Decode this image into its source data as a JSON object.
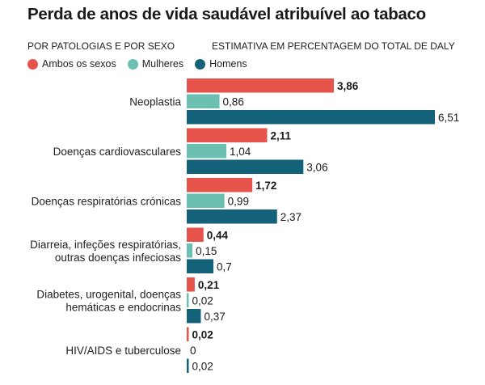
{
  "chart_data": {
    "type": "bar",
    "orientation": "horizontal",
    "title": "Perda de anos de vida saudável atribuível ao tabaco",
    "subtitle_left": "POR PATOLOGIAS E POR SEXO",
    "subtitle_right": "ESTIMATIVA EM PERCENTAGEM DO TOTAL DE DALY",
    "legend_position": "top-left",
    "grid": false,
    "xlim": [
      0,
      6.51
    ],
    "categories": [
      [
        "Neoplastia"
      ],
      [
        "Doenças cardiovasculares"
      ],
      [
        "Doenças respiratórias crónicas"
      ],
      [
        "Diarreia, infeções respiratórias,",
        "outras doenças infeciosas"
      ],
      [
        "Diabetes, urogenital, doenças",
        "hemáticas e endocrinas"
      ],
      [
        "HIV/AIDS e tuberculose"
      ]
    ],
    "series": [
      {
        "name": "Ambos os sexos",
        "color": "#e5534b",
        "bold_labels": true,
        "values": [
          3.86,
          2.11,
          1.72,
          0.44,
          0.21,
          0.02
        ],
        "labels": [
          "3,86",
          "2,11",
          "1,72",
          "0,44",
          "0,21",
          "0,02"
        ]
      },
      {
        "name": "Mulheres",
        "color": "#6cc0b2",
        "bold_labels": false,
        "values": [
          0.86,
          1.04,
          0.99,
          0.15,
          0.02,
          0
        ],
        "labels": [
          "0,86",
          "1,04",
          "0,99",
          "0,15",
          "0,02",
          "0"
        ]
      },
      {
        "name": "Homens",
        "color": "#14617a",
        "bold_labels": false,
        "values": [
          6.51,
          3.06,
          2.37,
          0.7,
          0.37,
          0.02
        ],
        "labels": [
          "6,51",
          "3,06",
          "2,37",
          "0,7",
          "0,37",
          "0,02"
        ]
      }
    ]
  }
}
